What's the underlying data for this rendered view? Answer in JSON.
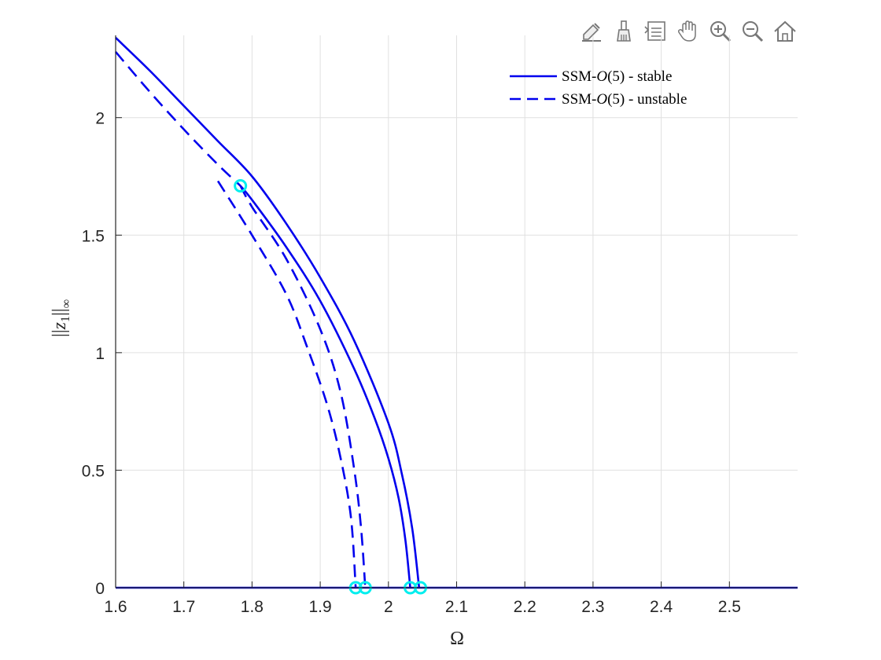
{
  "toolbar": {
    "items": [
      {
        "name": "edit-plot-icon"
      },
      {
        "name": "brush-icon"
      },
      {
        "name": "data-tips-icon"
      },
      {
        "name": "pan-hand-icon"
      },
      {
        "name": "zoom-in-icon"
      },
      {
        "name": "zoom-out-icon"
      },
      {
        "name": "home-icon"
      }
    ]
  },
  "chart_data": {
    "type": "line",
    "title": "",
    "xlabel": "Ω",
    "ylabel_parts": {
      "outer": "||",
      "var": "z",
      "sub": "1",
      "close": "||",
      "inf": "∞"
    },
    "xlim": [
      1.6,
      2.6
    ],
    "ylim": [
      0,
      2.35
    ],
    "xticks": [
      1.6,
      1.7,
      1.8,
      1.9,
      2.0,
      2.1,
      2.2,
      2.3,
      2.4,
      2.5
    ],
    "xtick_labels": [
      "1.6",
      "1.7",
      "1.8",
      "1.9",
      "2",
      "2.1",
      "2.2",
      "2.3",
      "2.4",
      "2.5"
    ],
    "yticks": [
      0,
      0.5,
      1,
      1.5,
      2
    ],
    "ytick_labels": [
      "0",
      "0.5",
      "1",
      "1.5",
      "2"
    ],
    "grid": true,
    "legend_position": "top-right",
    "colors": {
      "line": "#0000ee",
      "marker": "#00eeee",
      "grid": "#e0e0e0",
      "axis": "#262626"
    },
    "legend": [
      {
        "label_prefix": "SSM-",
        "label_script": "O",
        "label_suffix": "(5) - stable",
        "style": "solid"
      },
      {
        "label_prefix": "SSM-",
        "label_script": "O",
        "label_suffix": "(5) - unstable",
        "style": "dashed"
      }
    ],
    "series": [
      {
        "style": "solid",
        "x": [
          1.6,
          1.65,
          1.7,
          1.75,
          1.8,
          1.85,
          1.9,
          1.95,
          2.0,
          2.02,
          2.035,
          2.045
        ],
        "y": [
          2.34,
          2.2,
          2.05,
          1.9,
          1.75,
          1.55,
          1.32,
          1.05,
          0.7,
          0.48,
          0.25,
          0.0
        ]
      },
      {
        "style": "solid",
        "x": [
          1.783,
          1.8,
          1.85,
          1.9,
          1.95,
          1.98,
          2.0,
          2.015,
          2.025,
          2.032
        ],
        "y": [
          1.71,
          1.65,
          1.45,
          1.22,
          0.93,
          0.72,
          0.55,
          0.38,
          0.2,
          0.0
        ]
      },
      {
        "style": "dashed",
        "x": [
          1.6,
          1.65,
          1.7,
          1.75,
          1.783
        ],
        "y": [
          2.28,
          2.11,
          1.95,
          1.8,
          1.71
        ]
      },
      {
        "style": "dashed",
        "x": [
          1.783,
          1.8,
          1.85,
          1.9,
          1.93,
          1.95,
          1.96,
          1.966
        ],
        "y": [
          1.71,
          1.62,
          1.4,
          1.1,
          0.83,
          0.5,
          0.25,
          0.0
        ]
      },
      {
        "style": "dashed",
        "x": [
          1.75,
          1.8,
          1.85,
          1.88,
          1.91,
          1.93,
          1.945,
          1.952
        ],
        "y": [
          1.73,
          1.5,
          1.25,
          1.03,
          0.78,
          0.55,
          0.3,
          0.0
        ]
      },
      {
        "style": "solid",
        "x": [
          1.6,
          2.6
        ],
        "y": [
          0.0,
          0.0
        ]
      }
    ],
    "markers": [
      {
        "x": 1.783,
        "y": 1.71
      },
      {
        "x": 1.952,
        "y": 0.0
      },
      {
        "x": 1.966,
        "y": 0.0
      },
      {
        "x": 2.032,
        "y": 0.0
      },
      {
        "x": 2.047,
        "y": 0.0
      }
    ]
  }
}
